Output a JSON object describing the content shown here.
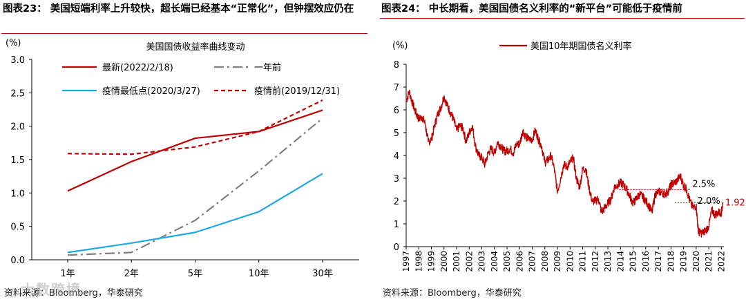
{
  "left_panel": {
    "title": "图表23：  美国短端利率上升较快，超长端已经基本“正常化”，但钟摆效应仍在",
    "source": "资料来源：Bloomberg，华泰研究",
    "watermark": "大数跨境"
  },
  "right_panel": {
    "title": "图表24：  中长期看，美国国债名义利率的“新平台”可能低于疫情前",
    "source": "资料来源：Bloomberg，华泰研究"
  },
  "chart_data": [
    {
      "type": "line",
      "title": "美国国债收益率曲线变动",
      "ylabel": "(%)",
      "xlabel": "",
      "ylim": [
        0.0,
        3.0
      ],
      "yticks": [
        "0.0",
        "0.5",
        "1.0",
        "1.5",
        "2.0",
        "2.5",
        "3.0"
      ],
      "categories": [
        "1年",
        "2年",
        "5年",
        "10年",
        "30年"
      ],
      "series": [
        {
          "name": "最新(2022/2/18)",
          "color": "#c00000",
          "style": "solid",
          "values": [
            1.03,
            1.47,
            1.82,
            1.92,
            2.24
          ]
        },
        {
          "name": "一年前",
          "color": "#808080",
          "style": "dashdot",
          "values": [
            0.07,
            0.11,
            0.59,
            1.33,
            2.12
          ]
        },
        {
          "name": "疫情最低点(2020/3/27)",
          "color": "#1ca8e0",
          "style": "solid",
          "values": [
            0.11,
            0.25,
            0.41,
            0.72,
            1.29
          ]
        },
        {
          "name": "疫情前(2019/12/31)",
          "color": "#c00000",
          "style": "dashed",
          "values": [
            1.59,
            1.58,
            1.69,
            1.92,
            2.39
          ]
        }
      ]
    },
    {
      "type": "line",
      "title": "",
      "ylabel": "(%)",
      "xlabel": "",
      "ylim": [
        0,
        8
      ],
      "yticks": [
        "0",
        "1",
        "2",
        "3",
        "4",
        "5",
        "6",
        "7",
        "8"
      ],
      "xlim": [
        1997,
        2022.2
      ],
      "xticks": [
        "1997",
        "1998",
        "1999",
        "2000",
        "2001",
        "2002",
        "2003",
        "2004",
        "2005",
        "2006",
        "2007",
        "2008",
        "2009",
        "2010",
        "2011",
        "2012",
        "2013",
        "2014",
        "2015",
        "2016",
        "2017",
        "2018",
        "2019",
        "2020",
        "2021",
        "2022"
      ],
      "series": [
        {
          "name": "美国10年期国债名义利率",
          "color": "#c00000",
          "x": [
            1997.0,
            1997.25,
            1997.5,
            1997.75,
            1998.0,
            1998.25,
            1998.5,
            1998.75,
            1999.0,
            1999.25,
            1999.5,
            1999.75,
            2000.0,
            2000.25,
            2000.5,
            2000.75,
            2001.0,
            2001.25,
            2001.5,
            2001.75,
            2002.0,
            2002.25,
            2002.5,
            2002.75,
            2003.0,
            2003.25,
            2003.5,
            2003.75,
            2004.0,
            2004.25,
            2004.5,
            2004.75,
            2005.0,
            2005.25,
            2005.5,
            2005.75,
            2006.0,
            2006.25,
            2006.5,
            2006.75,
            2007.0,
            2007.25,
            2007.5,
            2007.75,
            2008.0,
            2008.25,
            2008.5,
            2008.75,
            2009.0,
            2009.25,
            2009.5,
            2009.75,
            2010.0,
            2010.25,
            2010.5,
            2010.75,
            2011.0,
            2011.25,
            2011.5,
            2011.75,
            2012.0,
            2012.25,
            2012.5,
            2012.75,
            2013.0,
            2013.25,
            2013.5,
            2013.75,
            2014.0,
            2014.25,
            2014.5,
            2014.75,
            2015.0,
            2015.25,
            2015.5,
            2015.75,
            2016.0,
            2016.25,
            2016.5,
            2016.75,
            2017.0,
            2017.25,
            2017.5,
            2017.75,
            2018.0,
            2018.25,
            2018.5,
            2018.75,
            2019.0,
            2019.25,
            2019.5,
            2019.75,
            2020.0,
            2020.15,
            2020.25,
            2020.5,
            2020.75,
            2021.0,
            2021.25,
            2021.5,
            2021.75,
            2022.0,
            2022.13
          ],
          "values": [
            6.4,
            6.8,
            6.3,
            5.9,
            5.6,
            5.7,
            5.4,
            4.6,
            4.7,
            5.3,
            5.8,
            6.1,
            6.6,
            6.2,
            5.9,
            5.6,
            5.1,
            5.3,
            5.2,
            4.6,
            5.0,
            5.3,
            4.4,
            4.0,
            3.9,
            3.6,
            4.1,
            4.3,
            4.1,
            4.6,
            4.4,
            4.2,
            4.2,
            4.3,
            4.1,
            4.5,
            4.5,
            5.1,
            4.8,
            4.7,
            4.7,
            5.1,
            4.7,
            4.4,
            3.7,
            3.8,
            4.0,
            3.4,
            2.4,
            3.0,
            3.6,
            3.5,
            3.7,
            3.9,
            3.0,
            2.6,
            3.4,
            3.4,
            2.6,
            2.0,
            2.0,
            2.1,
            1.5,
            1.7,
            1.9,
            2.1,
            2.6,
            2.7,
            2.8,
            2.7,
            2.5,
            2.2,
            1.9,
            2.1,
            2.3,
            2.2,
            2.0,
            1.8,
            1.5,
            2.3,
            2.4,
            2.4,
            2.3,
            2.4,
            2.7,
            2.8,
            2.9,
            3.1,
            2.7,
            2.5,
            2.0,
            1.7,
            1.8,
            0.8,
            0.6,
            0.6,
            0.7,
            0.9,
            1.6,
            1.4,
            1.5,
            1.5,
            1.92
          ]
        }
      ],
      "annotations": [
        {
          "text": "2.5%",
          "y": 2.5
        },
        {
          "text": "2.0%",
          "y": 2.0
        },
        {
          "text": "1.92",
          "y": 1.92
        }
      ]
    }
  ]
}
